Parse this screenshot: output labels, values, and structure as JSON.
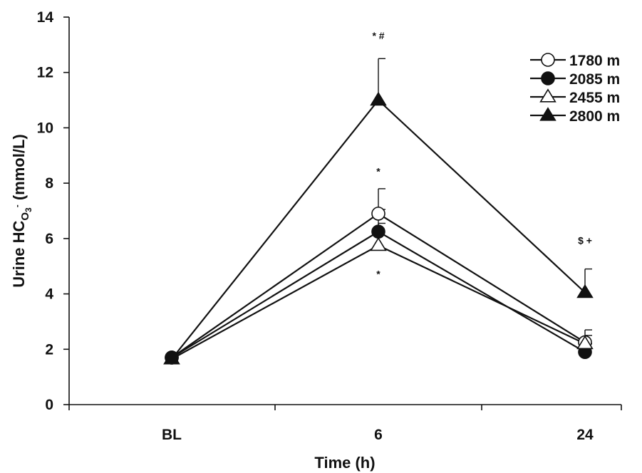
{
  "chart_data": {
    "type": "line",
    "categories": [
      "BL",
      "6",
      "24"
    ],
    "xlabel": "Time (h)",
    "ylabel": {
      "main": "Urine HC",
      "sub": "O",
      "subsub": "3",
      "sup": "-",
      "unit": " (mmol/L)"
    },
    "ylim": [
      0,
      14
    ],
    "yticks": [
      0,
      2,
      4,
      6,
      8,
      10,
      12,
      14
    ],
    "grid": false,
    "legend_position": "top-right",
    "series": [
      {
        "name": "1780 m",
        "marker": "circle-open",
        "values": [
          1.7,
          6.9,
          2.25
        ],
        "error": [
          0,
          0.9,
          0.45
        ]
      },
      {
        "name": "2085 m",
        "marker": "circle-filled",
        "values": [
          1.7,
          6.25,
          1.9
        ],
        "error": [
          0,
          0.8,
          0.3
        ]
      },
      {
        "name": "2455 m",
        "marker": "triangle-open",
        "values": [
          1.65,
          5.75,
          2.2
        ],
        "error": [
          0,
          0.8,
          0.3
        ]
      },
      {
        "name": "2800 m",
        "marker": "triangle-filled",
        "values": [
          1.65,
          11.0,
          4.05
        ],
        "error": [
          0,
          1.5,
          0.85
        ]
      }
    ],
    "annotations": [
      {
        "text": "*  #",
        "category": "6",
        "y": 13.2
      },
      {
        "text": "*",
        "category": "6",
        "y": 8.3
      },
      {
        "text": "*",
        "category": "6",
        "y": 4.6
      },
      {
        "text": "$  +",
        "category": "24",
        "y": 5.8
      }
    ]
  }
}
